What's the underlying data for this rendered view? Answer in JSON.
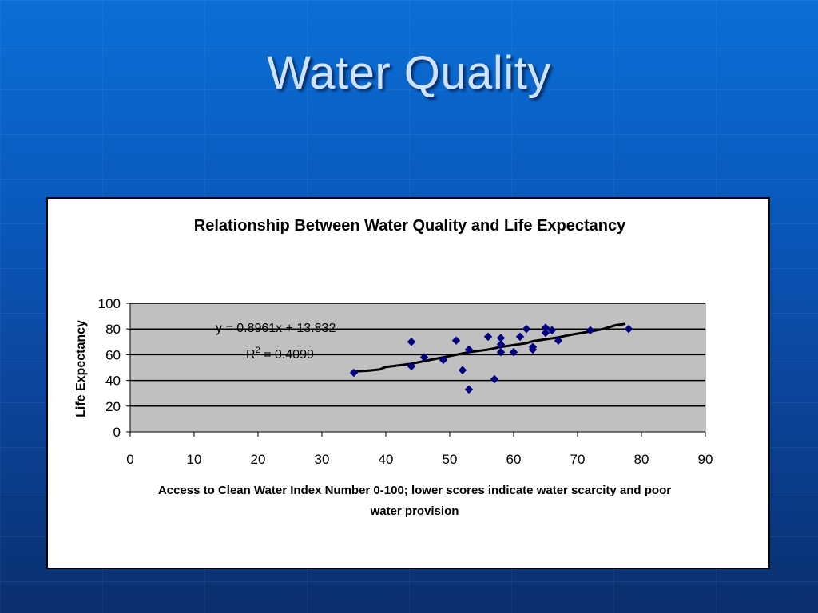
{
  "slide": {
    "title": "Water Quality"
  },
  "chart_data": {
    "type": "scatter",
    "title": "Relationship Between Water Quality and Life Expectancy",
    "xlabel_line1": "Access to Clean Water Index Number 0-100; lower scores indicate water scarcity and poor",
    "xlabel_line2": "water provision",
    "ylabel": "Life Expectancy",
    "xlim": [
      0,
      90
    ],
    "ylim": [
      0,
      100
    ],
    "x_ticks": [
      0,
      10,
      20,
      30,
      40,
      50,
      60,
      70,
      80,
      90
    ],
    "y_ticks": [
      0,
      20,
      40,
      60,
      80,
      100
    ],
    "grid": "horizontal",
    "plot_background": "#c0c0c0",
    "marker_color": "#000080",
    "equation": "y = 0.8961x + 13.832",
    "r2_prefix": "R",
    "r2_sup": "2",
    "r2_value": " = 0.4099",
    "points": [
      {
        "x": 35,
        "y": 46
      },
      {
        "x": 44,
        "y": 70
      },
      {
        "x": 44,
        "y": 51
      },
      {
        "x": 46,
        "y": 58
      },
      {
        "x": 49,
        "y": 56
      },
      {
        "x": 51,
        "y": 71
      },
      {
        "x": 52,
        "y": 48
      },
      {
        "x": 53,
        "y": 33
      },
      {
        "x": 53,
        "y": 64
      },
      {
        "x": 56,
        "y": 74
      },
      {
        "x": 57,
        "y": 41
      },
      {
        "x": 58,
        "y": 73
      },
      {
        "x": 58,
        "y": 68
      },
      {
        "x": 58,
        "y": 62
      },
      {
        "x": 60,
        "y": 62
      },
      {
        "x": 61,
        "y": 74
      },
      {
        "x": 62,
        "y": 80
      },
      {
        "x": 63,
        "y": 66
      },
      {
        "x": 63,
        "y": 64
      },
      {
        "x": 65,
        "y": 81
      },
      {
        "x": 65,
        "y": 77
      },
      {
        "x": 66,
        "y": 79
      },
      {
        "x": 67,
        "y": 71
      },
      {
        "x": 72,
        "y": 79
      },
      {
        "x": 78,
        "y": 80
      }
    ],
    "trendline": [
      {
        "x": 35,
        "y": 47
      },
      {
        "x": 37,
        "y": 47.5
      },
      {
        "x": 39,
        "y": 48.5
      },
      {
        "x": 40,
        "y": 50.5
      },
      {
        "x": 44,
        "y": 53
      },
      {
        "x": 46,
        "y": 55
      },
      {
        "x": 49,
        "y": 58
      },
      {
        "x": 52,
        "y": 61
      },
      {
        "x": 53,
        "y": 62
      },
      {
        "x": 56,
        "y": 64
      },
      {
        "x": 58,
        "y": 66
      },
      {
        "x": 60,
        "y": 67.5
      },
      {
        "x": 62,
        "y": 69
      },
      {
        "x": 63,
        "y": 70.5
      },
      {
        "x": 65,
        "y": 72
      },
      {
        "x": 67,
        "y": 73.5
      },
      {
        "x": 69,
        "y": 75.5
      },
      {
        "x": 72,
        "y": 78
      },
      {
        "x": 74,
        "y": 80
      },
      {
        "x": 76,
        "y": 83
      },
      {
        "x": 77.5,
        "y": 84
      }
    ]
  }
}
